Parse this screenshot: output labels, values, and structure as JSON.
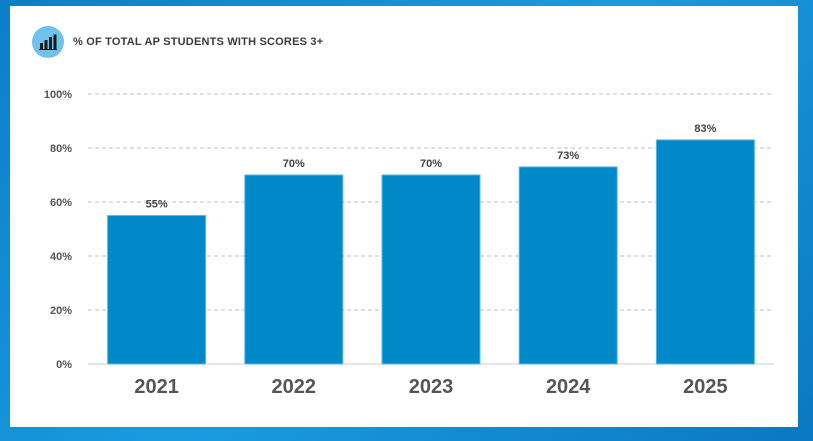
{
  "chart_data": {
    "type": "bar",
    "title": "% OF TOTAL AP STUDENTS WITH SCORES 3+",
    "icon": "bar-chart-icon",
    "categories": [
      "2021",
      "2022",
      "2023",
      "2024",
      "2025"
    ],
    "values": [
      55,
      70,
      70,
      73,
      83
    ],
    "data_labels": [
      "55%",
      "70%",
      "70%",
      "73%",
      "83%"
    ],
    "y_ticks": [
      "0%",
      "20%",
      "40%",
      "60%",
      "80%",
      "100%"
    ],
    "ylim": [
      0,
      100
    ],
    "grid": true,
    "bar_color": "#0089c9",
    "accent_color": "#6fc3ea"
  }
}
